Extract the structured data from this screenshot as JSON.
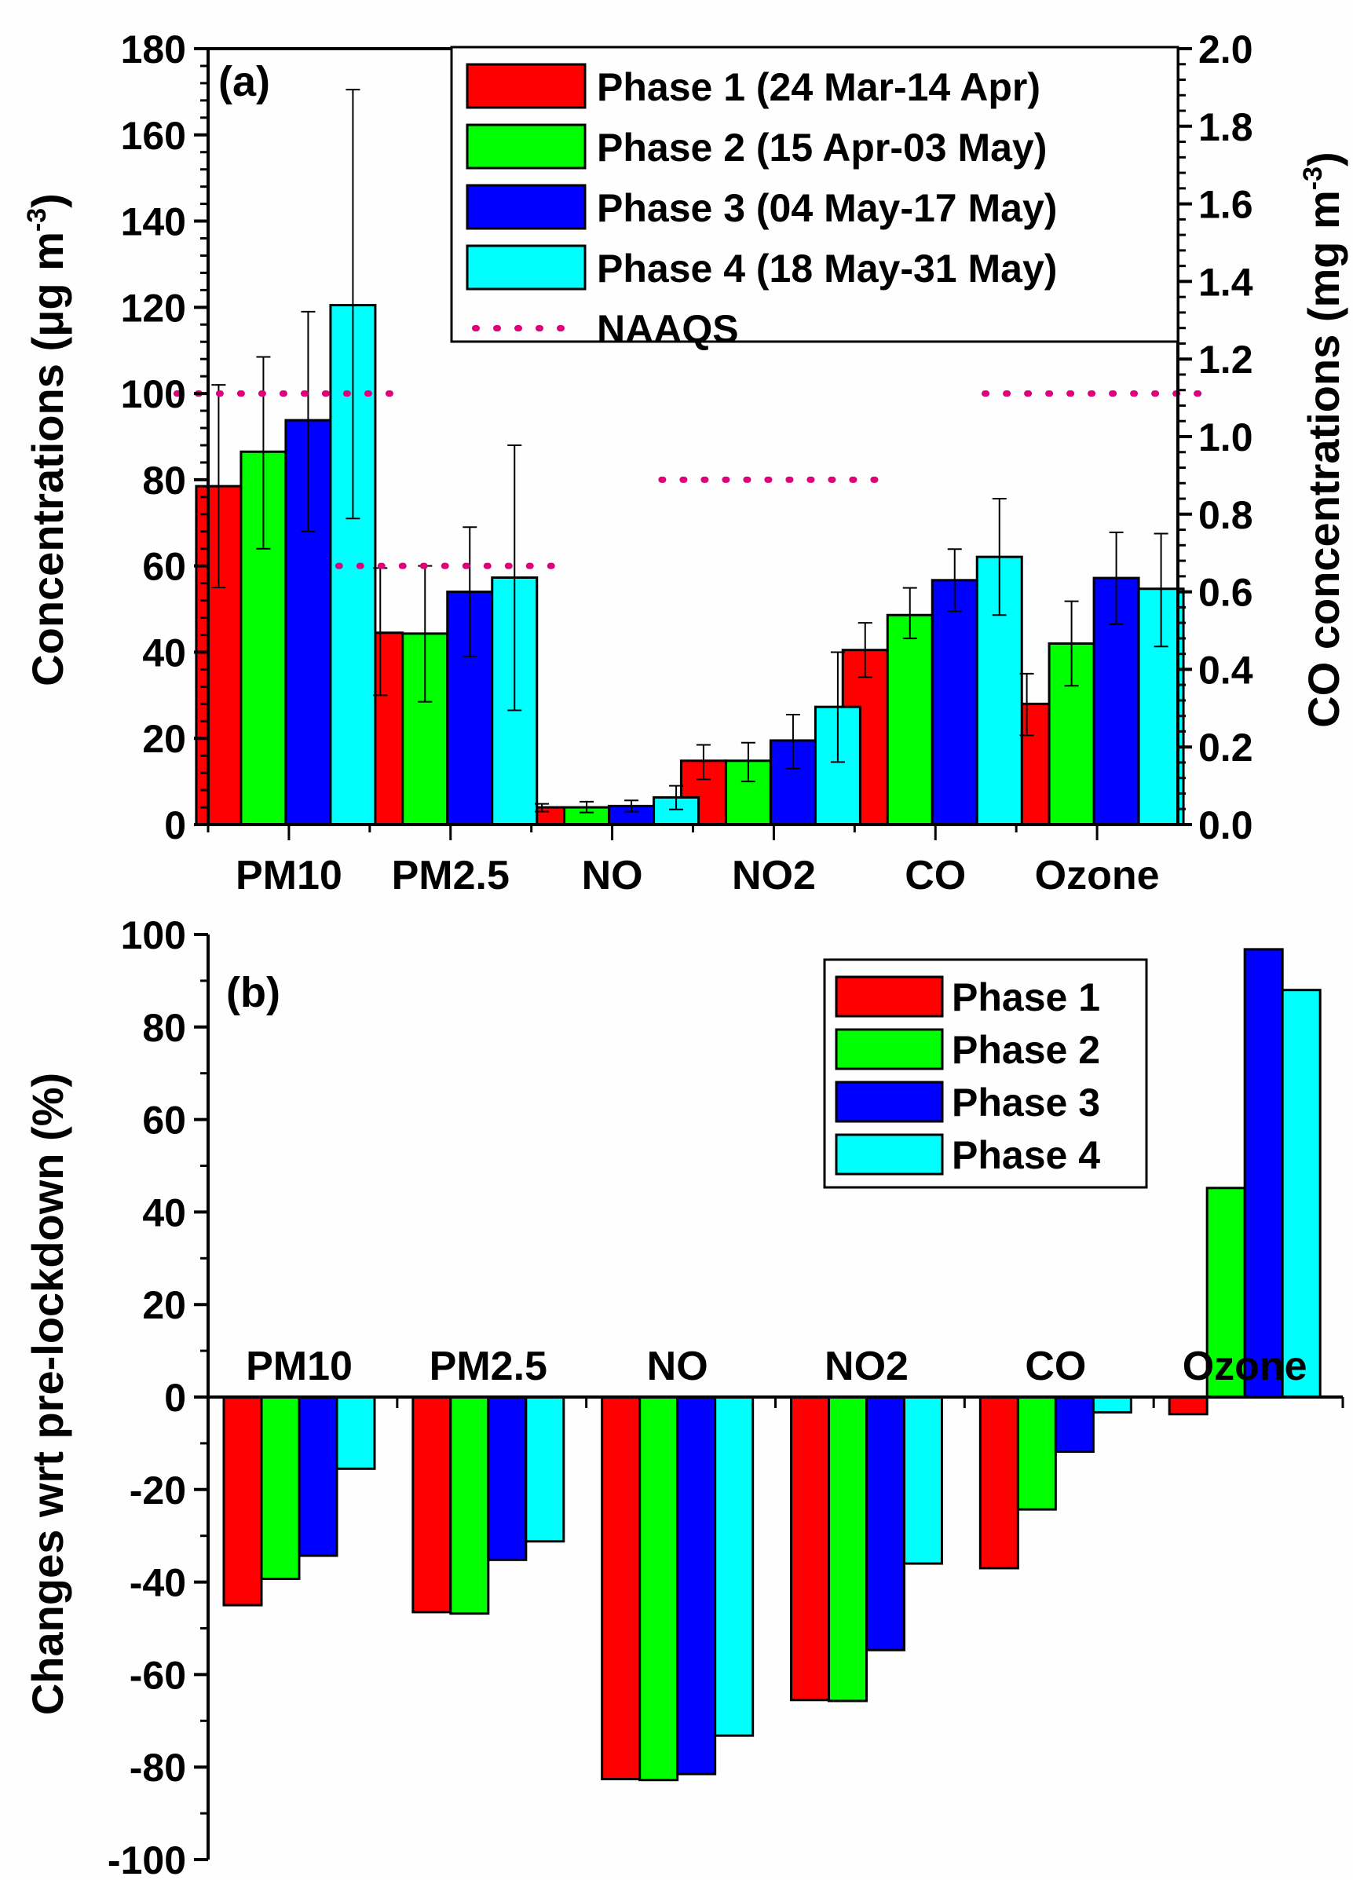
{
  "chart_data": [
    {
      "type": "bar",
      "panel_label": "(a)",
      "categories": [
        "PM10",
        "PM2.5",
        "NO",
        "NO2",
        "CO",
        "Ozone"
      ],
      "ylabel": "Concentrations (μg m⁻³)",
      "ylabel_parts": {
        "main": "Concentrations (μg m",
        "sup": "-3",
        "close": ")"
      },
      "y2label": "CO concentrations (mg m⁻³)",
      "y2label_parts": {
        "main": "CO concentrations (mg m",
        "sup": "-3",
        "close": ")"
      },
      "ylim": [
        0,
        180
      ],
      "y2lim": [
        0,
        2.0
      ],
      "yticks": [
        "0",
        "20",
        "40",
        "60",
        "80",
        "100",
        "120",
        "140",
        "160",
        "180"
      ],
      "y2ticks": [
        "0.0",
        "0.2",
        "0.4",
        "0.6",
        "0.8",
        "1.0",
        "1.2",
        "1.4",
        "1.6",
        "1.8",
        "2.0"
      ],
      "right_axis_categories": [
        "CO"
      ],
      "series": [
        {
          "name": "Phase 1 (24 Mar-14 Apr)",
          "color": "#ff0000",
          "values": [
            78.5,
            44.5,
            4.0,
            14.8,
            0.45,
            28.0
          ],
          "err_high": [
            102,
            59.5,
            4.8,
            18.5,
            0.52,
            35.0
          ],
          "err_low": [
            55,
            30,
            3.0,
            10.5,
            0.38,
            20.7
          ]
        },
        {
          "name": "Phase 2 (15 Apr-03 May)",
          "color": "#00ff00",
          "values": [
            86.5,
            44.3,
            4.0,
            14.8,
            0.54,
            42.0
          ],
          "err_high": [
            108.5,
            60,
            5.3,
            19.0,
            0.61,
            51.8
          ],
          "err_low": [
            64,
            28.5,
            2.8,
            10.0,
            0.48,
            32.2
          ]
        },
        {
          "name": "Phase 3 (04 May-17 May)",
          "color": "#0000ff",
          "values": [
            93.8,
            54.0,
            4.3,
            19.5,
            0.63,
            57.2
          ],
          "err_high": [
            119,
            69,
            5.6,
            25.5,
            0.71,
            67.8
          ],
          "err_low": [
            68,
            39,
            3.0,
            13.0,
            0.55,
            46.5
          ]
        },
        {
          "name": "Phase 4 (18 May-31 May)",
          "color": "#00ffff",
          "values": [
            120.5,
            57.3,
            6.3,
            27.3,
            0.69,
            54.7
          ],
          "err_high": [
            170.5,
            88,
            9.0,
            40.0,
            0.84,
            67.5
          ],
          "err_low": [
            71,
            26.5,
            3.5,
            14.5,
            0.54,
            41.3
          ]
        }
      ],
      "reference_lines": {
        "name": "NAAQS",
        "color": "#e0007a",
        "style": "dotted",
        "values": {
          "PM10": 100,
          "PM2.5": 60,
          "NO2": 80,
          "Ozone": 100
        }
      },
      "legend": {
        "placement": "top-right",
        "entries": [
          "Phase 1 (24 Mar-14 Apr)",
          "Phase 2 (15 Apr-03 May)",
          "Phase 3 (04 May-17 May)",
          "Phase 4 (18 May-31 May)",
          "NAAQS"
        ]
      },
      "grid": false
    },
    {
      "type": "bar",
      "panel_label": "(b)",
      "categories": [
        "PM10",
        "PM2.5",
        "NO",
        "NO2",
        "CO",
        "Ozone"
      ],
      "ylabel": "Changes wrt pre-lockdown (%)",
      "ylim": [
        -100,
        100
      ],
      "yticks": [
        "-100",
        "-80",
        "-60",
        "-40",
        "-20",
        "0",
        "20",
        "40",
        "60",
        "80",
        "100"
      ],
      "series": [
        {
          "name": "Phase 1",
          "color": "#ff0000",
          "values": [
            -45.0,
            -46.5,
            -82.6,
            -65.5,
            -37.0,
            -3.7
          ]
        },
        {
          "name": "Phase 2",
          "color": "#00ff00",
          "values": [
            -39.3,
            -46.8,
            -82.8,
            -65.7,
            -24.3,
            45.2
          ]
        },
        {
          "name": "Phase 3",
          "color": "#0000ff",
          "values": [
            -34.3,
            -35.2,
            -81.5,
            -54.7,
            -11.8,
            96.8
          ]
        },
        {
          "name": "Phase 4",
          "color": "#00ffff",
          "values": [
            -15.5,
            -31.2,
            -73.2,
            -36.0,
            -3.3,
            88.0
          ]
        }
      ],
      "legend": {
        "placement": "top-right",
        "entries": [
          "Phase 1",
          "Phase 2",
          "Phase 3",
          "Phase 4"
        ]
      },
      "grid": false
    }
  ]
}
